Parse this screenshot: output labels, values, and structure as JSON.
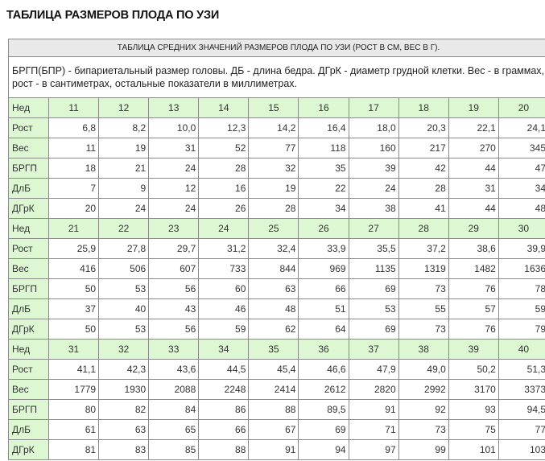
{
  "title": "ТАБЛИЦА РАЗМЕРОВ ПЛОДА ПО УЗИ",
  "table": {
    "caption": "ТАБЛИЦА СРЕДНИХ ЗНАЧЕНИЙ РАЗМЕРОВ ПЛОДА ПО УЗИ (РОСТ В СМ, ВЕС В Г).",
    "description": "БРГП(БПР) - бипариетальный размер головы. ДБ - длина бедра. ДГрК - диаметр грудной клетки. Вес - в граммах, рост - в сантиметрах, остальные показатели в миллиметрах.",
    "week_label": "Нед",
    "row_labels": [
      "Рост",
      "Вес",
      "БРГП",
      "ДлБ",
      "ДГрК"
    ],
    "colors": {
      "green": "#ddf7d3",
      "header_gray": "#e9e9e9"
    },
    "blocks": [
      {
        "weeks": [
          "11",
          "12",
          "13",
          "14",
          "15",
          "16",
          "17",
          "18",
          "19",
          "20"
        ],
        "rows": [
          [
            "6,8",
            "8,2",
            "10,0",
            "12,3",
            "14,2",
            "16,4",
            "18,0",
            "20,3",
            "22,1",
            "24,1"
          ],
          [
            "11",
            "19",
            "31",
            "52",
            "77",
            "118",
            "160",
            "217",
            "270",
            "345"
          ],
          [
            "18",
            "21",
            "24",
            "28",
            "32",
            "35",
            "39",
            "42",
            "44",
            "47"
          ],
          [
            "7",
            "9",
            "12",
            "16",
            "19",
            "22",
            "24",
            "28",
            "31",
            "34"
          ],
          [
            "20",
            "24",
            "24",
            "26",
            "28",
            "34",
            "38",
            "41",
            "44",
            "48"
          ]
        ]
      },
      {
        "weeks": [
          "21",
          "22",
          "23",
          "24",
          "25",
          "26",
          "27",
          "28",
          "29",
          "30"
        ],
        "rows": [
          [
            "25,9",
            "27,8",
            "29,7",
            "31,2",
            "32,4",
            "33,9",
            "35,5",
            "37,2",
            "38,6",
            "39,9"
          ],
          [
            "416",
            "506",
            "607",
            "733",
            "844",
            "969",
            "1135",
            "1319",
            "1482",
            "1636"
          ],
          [
            "50",
            "53",
            "56",
            "60",
            "63",
            "66",
            "69",
            "73",
            "76",
            "78"
          ],
          [
            "37",
            "40",
            "43",
            "46",
            "48",
            "51",
            "53",
            "55",
            "57",
            "59"
          ],
          [
            "50",
            "53",
            "56",
            "59",
            "62",
            "64",
            "69",
            "73",
            "76",
            "79"
          ]
        ]
      },
      {
        "weeks": [
          "31",
          "32",
          "33",
          "34",
          "35",
          "36",
          "37",
          "38",
          "39",
          "40"
        ],
        "rows": [
          [
            "41,1",
            "42,3",
            "43,6",
            "44,5",
            "45,4",
            "46,6",
            "47,9",
            "49,0",
            "50,2",
            "51,3"
          ],
          [
            "1779",
            "1930",
            "2088",
            "2248",
            "2414",
            "2612",
            "2820",
            "2992",
            "3170",
            "3373"
          ],
          [
            "80",
            "82",
            "84",
            "86",
            "88",
            "89,5",
            "91",
            "92",
            "93",
            "94,5"
          ],
          [
            "61",
            "63",
            "65",
            "66",
            "67",
            "69",
            "71",
            "73",
            "75",
            "77"
          ],
          [
            "81",
            "83",
            "85",
            "88",
            "91",
            "94",
            "97",
            "99",
            "101",
            "103"
          ]
        ]
      }
    ]
  }
}
